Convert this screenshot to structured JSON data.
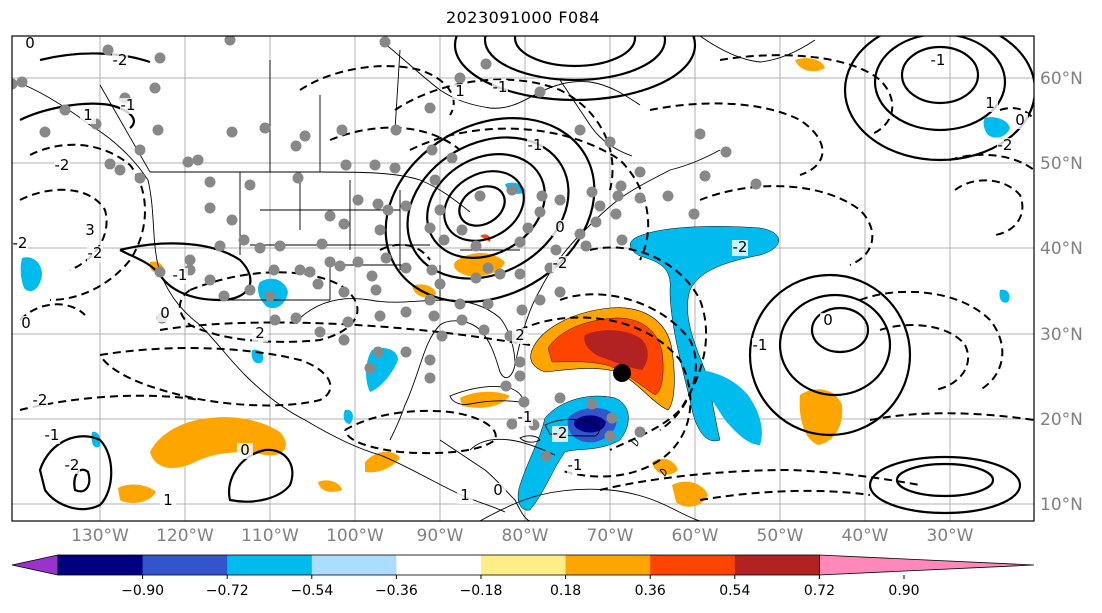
{
  "title": "2023091000 F084",
  "latitude_labels": [
    "60°N",
    "50°N",
    "40°N",
    "30°N",
    "20°N",
    "10°N"
  ],
  "longitude_labels": [
    "130°W",
    "120°W",
    "110°W",
    "100°W",
    "90°W",
    "80°W",
    "70°W",
    "60°W",
    "50°W",
    "40°W",
    "30°W"
  ],
  "contour_labels": [
    "0",
    "-2",
    "-1",
    "1",
    "-2",
    "3",
    "-2",
    "-2",
    "-1",
    "0",
    "2",
    "0",
    "-2",
    "-1",
    "-2",
    "1",
    "0",
    "1",
    "-1",
    "-1",
    "0",
    "-2",
    "2",
    "-1",
    "-2",
    "0",
    "1",
    "-1",
    "-2",
    "-1",
    "0",
    "-1",
    "1",
    "0",
    "-2"
  ],
  "colorbar": {
    "tick_labels": [
      "−0.90",
      "−0.72",
      "−0.54",
      "−0.36",
      "−0.18",
      "0.18",
      "0.36",
      "0.54",
      "0.72",
      "0.90"
    ],
    "colors": [
      "#9933cc",
      "#000080",
      "#3355cc",
      "#00bbee",
      "#aaddff",
      "#ffffff",
      "#ffee88",
      "#ffa500",
      "#ff4400",
      "#b22222",
      "#ff88bb"
    ],
    "extend": "both"
  },
  "legend_colors": {
    "station_dot": "#888888",
    "storm_center": "#000000",
    "grid": "#b0b0b0"
  }
}
